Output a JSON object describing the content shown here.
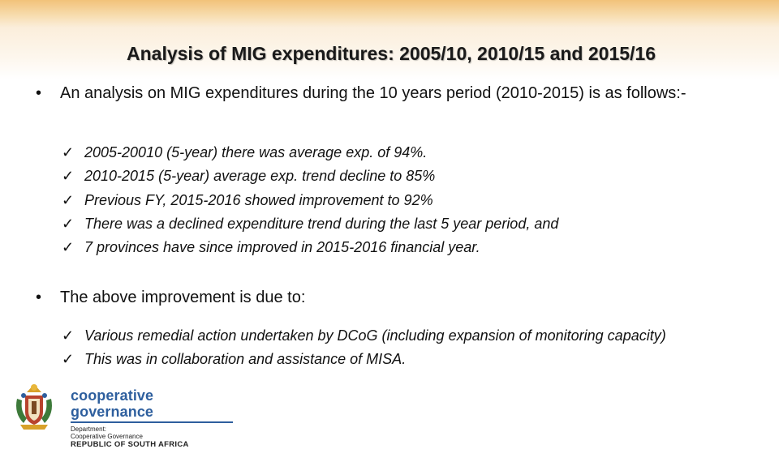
{
  "slide": {
    "title": "Analysis of MIG expenditures: 2005/10, 2010/15 and 2015/16",
    "bullet1": {
      "text": "An analysis on MIG expenditures during the 10 years period (2010-2015) is as follows:-",
      "items": [
        "2005-20010 (5-year) there was average exp. of 94%.",
        "2010-2015 (5-year) average exp. trend decline to 85%",
        "Previous FY, 2015-2016 showed improvement to 92%",
        "There was a declined expenditure trend during the last 5 year period, and",
        "7 provinces have since improved in 2015-2016 financial year."
      ]
    },
    "bullet2": {
      "text": "The above improvement is due to:",
      "items": [
        "Various remedial action undertaken by DCoG (including expansion of monitoring capacity)",
        "This was in collaboration and assistance of MISA."
      ]
    },
    "bullet_glyph": "•",
    "check_glyph": "✓"
  },
  "logo": {
    "name": "cooperative governance",
    "line1": "Department:",
    "line2": "Cooperative Governance",
    "line3": "REPUBLIC OF SOUTH AFRICA"
  },
  "colors": {
    "band_top": "#f2c27a",
    "logo_blue": "#2e5f9e"
  }
}
